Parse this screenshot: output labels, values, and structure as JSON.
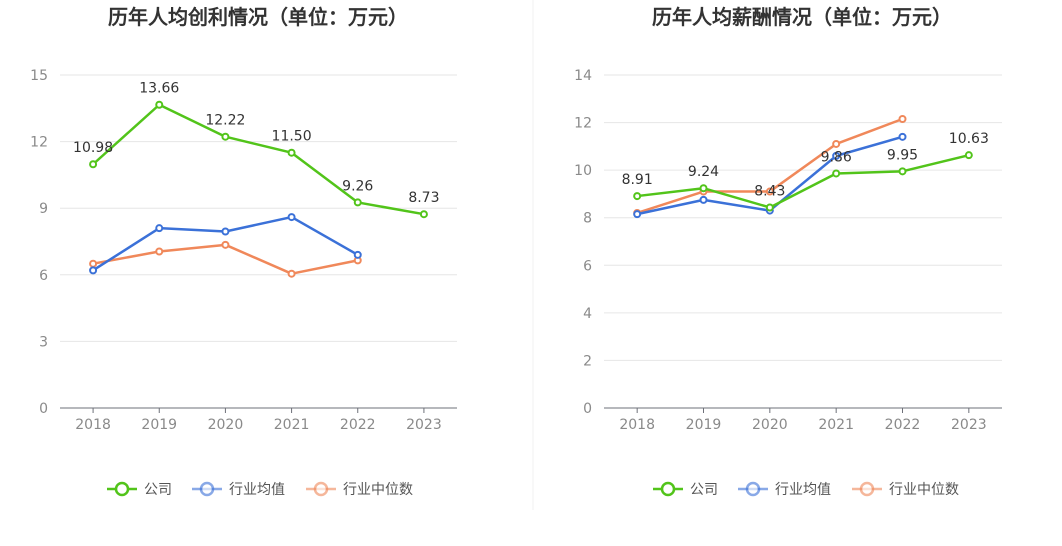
{
  "legend": [
    {
      "name": "公司",
      "color": "#52c41a"
    },
    {
      "name": "行业均值",
      "color": "#3b71d8"
    },
    {
      "name": "行业中位数",
      "color": "#f0885a"
    }
  ],
  "chart_data": [
    {
      "type": "line",
      "title": "历年人均创利情况（单位：万元）",
      "categories": [
        "2018",
        "2019",
        "2020",
        "2021",
        "2022",
        "2023"
      ],
      "ylim": [
        0,
        15
      ],
      "yticks": [
        0,
        3,
        6,
        9,
        12,
        15
      ],
      "grid": true,
      "legend_position": "bottom",
      "series": [
        {
          "name": "公司",
          "values": [
            10.98,
            13.66,
            12.22,
            11.5,
            9.26,
            8.73
          ],
          "labels": [
            "10.98",
            "13.66",
            "12.22",
            "11.50",
            "9.26",
            "8.73"
          ]
        },
        {
          "name": "行业均值",
          "values": [
            6.2,
            8.1,
            7.95,
            8.6,
            6.9,
            null
          ]
        },
        {
          "name": "行业中位数",
          "values": [
            6.5,
            7.05,
            7.35,
            6.05,
            6.65,
            null
          ]
        }
      ]
    },
    {
      "type": "line",
      "title": "历年人均薪酬情况（单位：万元）",
      "categories": [
        "2018",
        "2019",
        "2020",
        "2021",
        "2022",
        "2023"
      ],
      "ylim": [
        0,
        14
      ],
      "yticks": [
        0,
        2,
        4,
        6,
        8,
        10,
        12,
        14
      ],
      "grid": true,
      "legend_position": "bottom",
      "series": [
        {
          "name": "公司",
          "values": [
            8.91,
            9.24,
            8.43,
            9.86,
            9.95,
            10.63
          ],
          "labels": [
            "8.91",
            "9.24",
            "8.43",
            "9.86",
            "9.95",
            "10.63"
          ]
        },
        {
          "name": "行业均值",
          "values": [
            8.15,
            8.75,
            8.3,
            10.6,
            11.4,
            null
          ]
        },
        {
          "name": "行业中位数",
          "values": [
            8.2,
            9.1,
            9.1,
            11.1,
            12.15,
            null
          ]
        }
      ]
    }
  ]
}
